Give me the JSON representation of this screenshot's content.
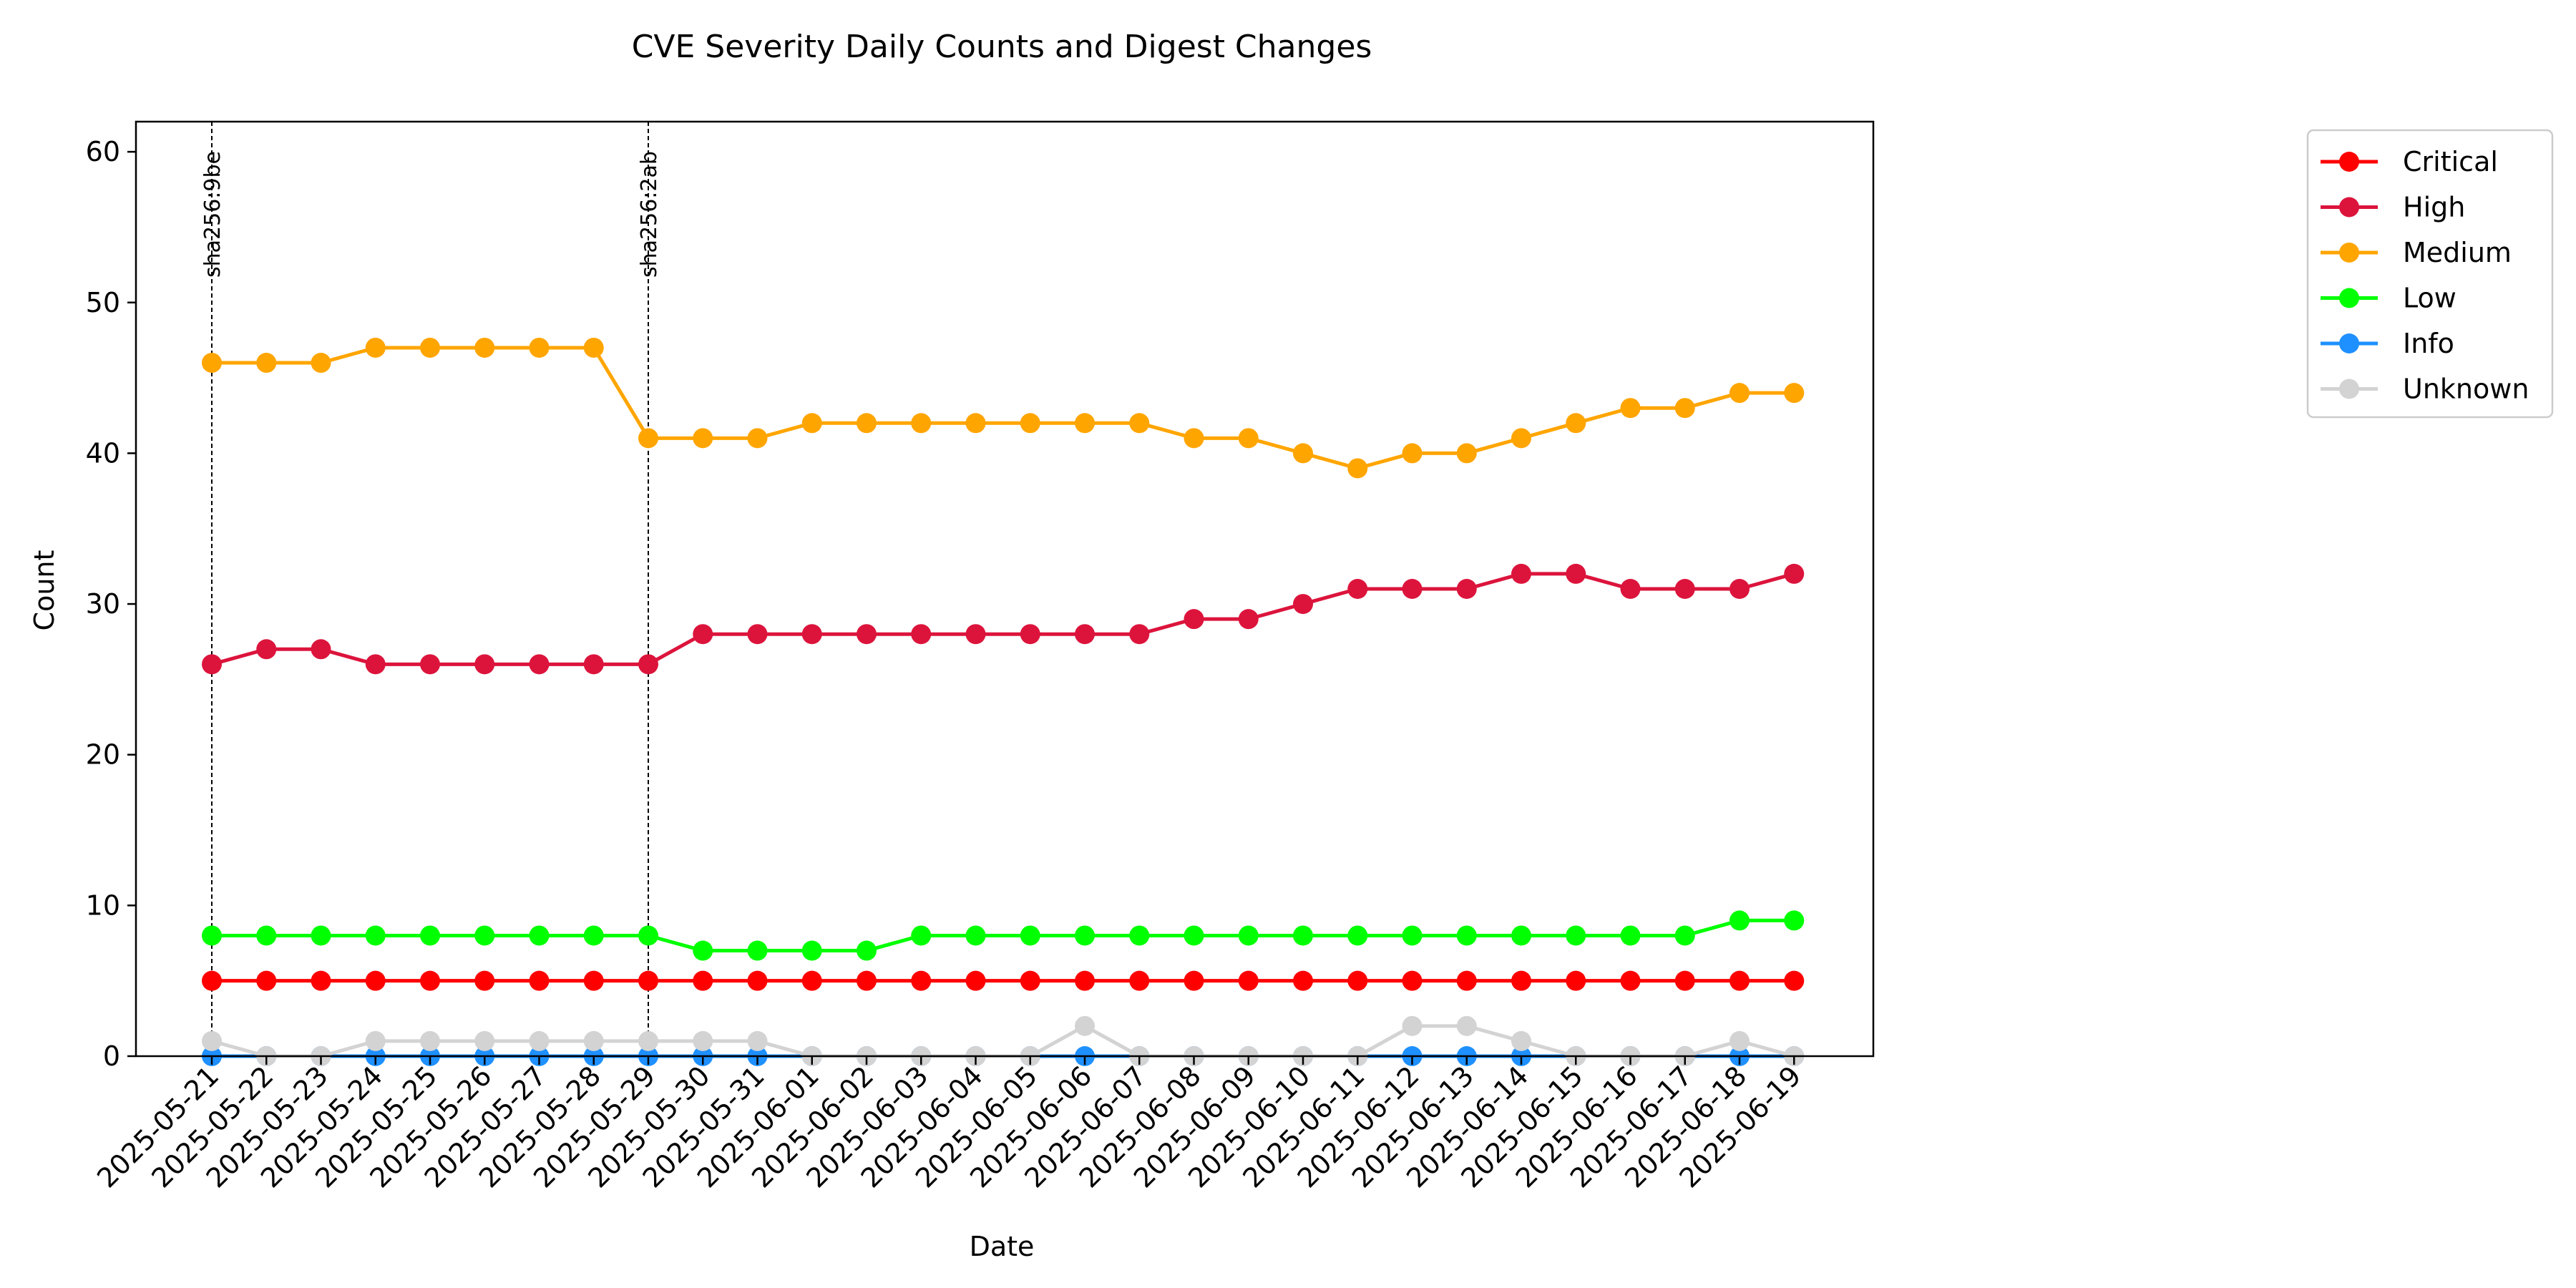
{
  "chart_data": {
    "type": "line",
    "title": "CVE Severity Daily Counts and Digest Changes",
    "xlabel": "Date",
    "ylabel": "Count",
    "ylim": [
      0,
      62
    ],
    "yticks": [
      0,
      10,
      20,
      30,
      40,
      50,
      60
    ],
    "grid": false,
    "legend_position": "outside-top-right",
    "x": [
      "2025-05-21",
      "2025-05-22",
      "2025-05-23",
      "2025-05-24",
      "2025-05-25",
      "2025-05-26",
      "2025-05-27",
      "2025-05-28",
      "2025-05-29",
      "2025-05-30",
      "2025-05-31",
      "2025-06-01",
      "2025-06-02",
      "2025-06-03",
      "2025-06-04",
      "2025-06-05",
      "2025-06-06",
      "2025-06-07",
      "2025-06-08",
      "2025-06-09",
      "2025-06-10",
      "2025-06-11",
      "2025-06-12",
      "2025-06-13",
      "2025-06-14",
      "2025-06-15",
      "2025-06-16",
      "2025-06-17",
      "2025-06-18",
      "2025-06-19"
    ],
    "series": [
      {
        "name": "Critical",
        "color": "#ff0000",
        "values": [
          5,
          5,
          5,
          5,
          5,
          5,
          5,
          5,
          5,
          5,
          5,
          5,
          5,
          5,
          5,
          5,
          5,
          5,
          5,
          5,
          5,
          5,
          5,
          5,
          5,
          5,
          5,
          5,
          5,
          5
        ]
      },
      {
        "name": "High",
        "color": "#dc143c",
        "values": [
          26,
          27,
          27,
          26,
          26,
          26,
          26,
          26,
          26,
          28,
          28,
          28,
          28,
          28,
          28,
          28,
          28,
          28,
          29,
          29,
          30,
          31,
          31,
          31,
          32,
          32,
          31,
          31,
          31,
          32
        ]
      },
      {
        "name": "Medium",
        "color": "#ffa500",
        "values": [
          46,
          46,
          46,
          47,
          47,
          47,
          47,
          47,
          41,
          41,
          41,
          42,
          42,
          42,
          42,
          42,
          42,
          42,
          41,
          41,
          40,
          39,
          40,
          40,
          41,
          42,
          43,
          43,
          44,
          44
        ]
      },
      {
        "name": "Low",
        "color": "#00ff00",
        "values": [
          8,
          8,
          8,
          8,
          8,
          8,
          8,
          8,
          8,
          7,
          7,
          7,
          7,
          8,
          8,
          8,
          8,
          8,
          8,
          8,
          8,
          8,
          8,
          8,
          8,
          8,
          8,
          8,
          9,
          9
        ]
      },
      {
        "name": "Info",
        "color": "#1e90ff",
        "values": [
          0,
          0,
          0,
          0,
          0,
          0,
          0,
          0,
          0,
          0,
          0,
          0,
          0,
          0,
          0,
          0,
          0,
          0,
          0,
          0,
          0,
          0,
          0,
          0,
          0,
          0,
          0,
          0,
          0,
          0
        ]
      },
      {
        "name": "Unknown",
        "color": "#d3d3d3",
        "values": [
          1,
          0,
          0,
          1,
          1,
          1,
          1,
          1,
          1,
          1,
          1,
          0,
          0,
          0,
          0,
          0,
          2,
          0,
          0,
          0,
          0,
          0,
          2,
          2,
          1,
          0,
          0,
          0,
          1,
          0
        ]
      }
    ],
    "annotations": [
      {
        "x": "2025-05-21",
        "label": "sha256:9be"
      },
      {
        "x": "2025-05-29",
        "label": "sha256:2ab"
      }
    ]
  }
}
